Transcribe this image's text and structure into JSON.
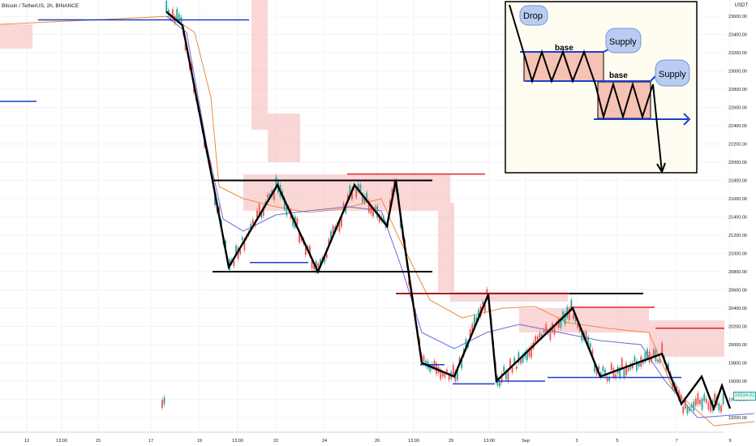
{
  "header": {
    "symbol": "Bitcoin / TetherUS, 2h, BINANCE",
    "currency": "USDT"
  },
  "last_price": "19334.01",
  "inset": {
    "drop": "Drop",
    "supply_1": "Supply",
    "supply_2": "Supply",
    "base_1": "base",
    "base_2": "base"
  },
  "chart_data": {
    "type": "line",
    "title": "",
    "yaxis": {
      "range": [
        19000,
        23650
      ],
      "ticks": [
        19200,
        19400,
        19600,
        19800,
        20000,
        20200,
        20400,
        20600,
        20800,
        21000,
        21200,
        21400,
        21600,
        21800,
        22000,
        22200,
        22400,
        22600,
        22800,
        23000,
        23200,
        23400,
        23600
      ],
      "tick_labels": [
        "19200.00",
        "19400.00",
        "19600.00",
        "19800.00",
        "20000.00",
        "20200.00",
        "20400.00",
        "20600.00",
        "20800.00",
        "21000.00",
        "21200.00",
        "21400.00",
        "21600.00",
        "21800.00",
        "22000.00",
        "22200.00",
        "22400.00",
        "22600.00",
        "22800.00",
        "23000.00",
        "23200.00",
        "23400.00",
        "23600.00"
      ]
    },
    "xaxis": {
      "ticks": [
        "12",
        "13:00",
        "15",
        "17",
        "19",
        "13:00",
        "22",
        "24",
        "26",
        "13:00",
        "29",
        "13:00",
        "Sep",
        "3",
        "5",
        "7",
        "9"
      ]
    },
    "grid": true,
    "series": [
      {
        "drawn_path": "price zigzag",
        "color": "#000000",
        "points": [
          [
            "15",
            23650
          ],
          [
            "17",
            23500
          ],
          [
            "19",
            21800
          ],
          [
            "19",
            20850
          ],
          [
            "22",
            21750
          ],
          [
            "24",
            20800
          ],
          [
            "24",
            21750
          ],
          [
            "26",
            21300
          ],
          [
            "26",
            21800
          ],
          [
            "26",
            21200
          ],
          [
            "13:00",
            19800
          ],
          [
            "29",
            19650
          ],
          [
            "13:00",
            20550
          ],
          [
            "Sep",
            19600
          ],
          [
            "3",
            20400
          ],
          [
            "5",
            19650
          ],
          [
            "7",
            19900
          ],
          [
            "9",
            19350
          ]
        ]
      }
    ],
    "levels": [
      {
        "value": 23560,
        "color": "#1a3fcf"
      },
      {
        "value": 21800,
        "color": "#000000"
      },
      {
        "value": 20800,
        "color": "#000000"
      },
      {
        "value": 20900,
        "color": "#1a3fcf"
      },
      {
        "value": 20560,
        "color": "#000000"
      },
      {
        "value": 20560,
        "color": "#e02424"
      },
      {
        "value": 20410,
        "color": "#e02424"
      },
      {
        "value": 20180,
        "color": "#e02424"
      },
      {
        "value": 19780,
        "color": "#1a3fcf"
      },
      {
        "value": 19570,
        "color": "#1a3fcf"
      },
      {
        "value": 21870,
        "color": "#e02424"
      }
    ]
  }
}
